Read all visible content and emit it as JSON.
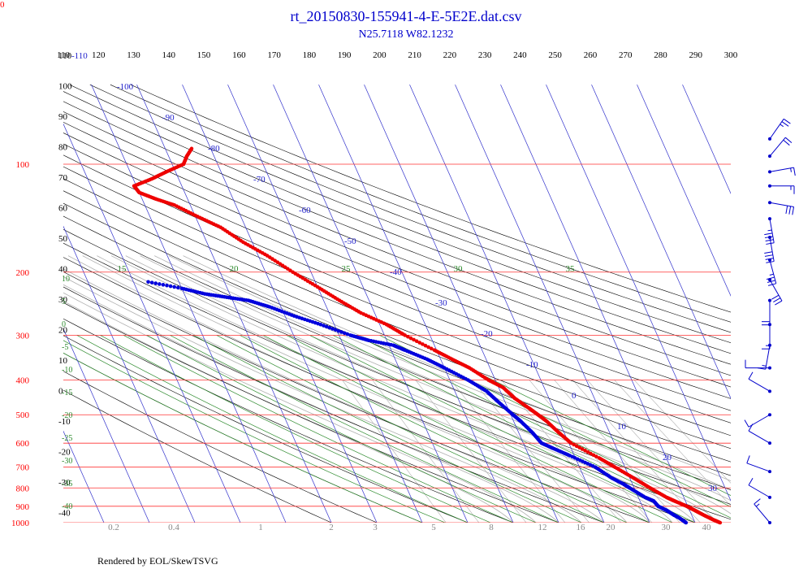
{
  "page": {
    "corner_label": "0",
    "title": "rt_20150830-155941-4-E-5E2E.dat.csv",
    "subtitle": "N25.7118 W82.1232",
    "credit": "Rendered by EOL/SkewTSVG"
  },
  "colors": {
    "isobar": "#ff3333",
    "isobar_label": "#ff0000",
    "isotherm": "#3333cc",
    "isotherm_label": "#2222cc",
    "dry_adiabat": "#000000",
    "moist_adiabat": "#b0b0b0",
    "mixing_ratio": "#2e8b2e",
    "temperature_trace": "#ee0000",
    "dewpoint_trace": "#0000dd",
    "wind_barb": "#0000cc"
  },
  "chart_data": {
    "type": "scatter",
    "chart_kind": "skew-t log-p diagram",
    "p_range_hPa": [
      100,
      1000
    ],
    "top_label_range": [
      110,
      300
    ],
    "pressure_labels": [
      "100",
      "200",
      "300",
      "400",
      "500",
      "600",
      "700",
      "800",
      "900",
      "1000"
    ],
    "pressure_levels": [
      100,
      200,
      300,
      400,
      500,
      600,
      700,
      800,
      900,
      1000
    ],
    "top_scale_labels": [
      "110",
      "120",
      "130",
      "140",
      "150",
      "160",
      "170",
      "180",
      "190",
      "200",
      "210",
      "220",
      "230",
      "240",
      "250",
      "260",
      "270",
      "280",
      "290",
      "300"
    ],
    "left_theta_labels": [
      "110",
      "100",
      "90",
      "80",
      "70",
      "60",
      "50",
      "40",
      "30",
      "20",
      "10",
      "0",
      "-10",
      "-20",
      "-30",
      "-40"
    ],
    "left_mixing_labels": [
      "10",
      "5",
      "0",
      "-5",
      "-10",
      "-15",
      "-20",
      "-25",
      "-30",
      "-35",
      "-40"
    ],
    "isotherm_labels": [
      {
        "t": -110,
        "text": "-110"
      },
      {
        "t": -100,
        "text": "-100"
      },
      {
        "t": -90,
        "text": "-90"
      },
      {
        "t": -80,
        "text": "-80"
      },
      {
        "t": -70,
        "text": "-70"
      },
      {
        "t": -60,
        "text": "-60"
      },
      {
        "t": -50,
        "text": "-50"
      },
      {
        "t": -40,
        "text": "-40"
      },
      {
        "t": -30,
        "text": "-30"
      },
      {
        "t": -20,
        "text": "-20"
      },
      {
        "t": -10,
        "text": "-10"
      },
      {
        "t": 0,
        "text": "0"
      },
      {
        "t": 10,
        "text": "10"
      },
      {
        "t": 20,
        "text": "20"
      },
      {
        "t": 30,
        "text": "30"
      }
    ],
    "moist_labels": [
      "15",
      "20",
      "25",
      "30",
      "35"
    ],
    "bottom_mixing_labels": [
      "0.2",
      "0.4",
      "1",
      "2",
      "3",
      "5",
      "8",
      "12",
      "16",
      "20",
      "30",
      "40"
    ],
    "temperature": [
      {
        "p": 1000,
        "t": 25.5
      },
      {
        "p": 980,
        "t": 24.2
      },
      {
        "p": 950,
        "t": 22.5
      },
      {
        "p": 925,
        "t": 21.2
      },
      {
        "p": 900,
        "t": 19.8
      },
      {
        "p": 870,
        "t": 17.6
      },
      {
        "p": 850,
        "t": 16.2
      },
      {
        "p": 800,
        "t": 13.5
      },
      {
        "p": 750,
        "t": 10.8
      },
      {
        "p": 700,
        "t": 7.8
      },
      {
        "p": 660,
        "t": 5.2
      },
      {
        "p": 600,
        "t": 0.5
      },
      {
        "p": 560,
        "t": -1.2
      },
      {
        "p": 520,
        "t": -2.8
      },
      {
        "p": 500,
        "t": -4.0
      },
      {
        "p": 480,
        "t": -5.3
      },
      {
        "p": 450,
        "t": -7.5
      },
      {
        "p": 420,
        "t": -9.0
      },
      {
        "p": 400,
        "t": -11.5
      },
      {
        "p": 370,
        "t": -14.5
      },
      {
        "p": 350,
        "t": -17.5
      },
      {
        "p": 330,
        "t": -20.5
      },
      {
        "p": 300,
        "t": -25.5
      },
      {
        "p": 280,
        "t": -28.5
      },
      {
        "p": 260,
        "t": -33.0
      },
      {
        "p": 240,
        "t": -36.5
      },
      {
        "p": 220,
        "t": -40.0
      },
      {
        "p": 200,
        "t": -44.0
      },
      {
        "p": 180,
        "t": -48.0
      },
      {
        "p": 165,
        "t": -52.0
      },
      {
        "p": 150,
        "t": -55.5
      },
      {
        "p": 140,
        "t": -59.5
      },
      {
        "p": 130,
        "t": -63.5
      },
      {
        "p": 125,
        "t": -67.0
      },
      {
        "p": 120,
        "t": -70.0
      },
      {
        "p": 115,
        "t": -70.5
      },
      {
        "p": 110,
        "t": -66.0
      },
      {
        "p": 105,
        "t": -62.0
      },
      {
        "p": 100,
        "t": -57.5
      },
      {
        "p": 95,
        "t": -56.0
      },
      {
        "p": 90,
        "t": -54.0
      }
    ],
    "dewpoint": [
      {
        "p": 1000,
        "t": 18.0
      },
      {
        "p": 970,
        "t": 17.0
      },
      {
        "p": 950,
        "t": 16.0
      },
      {
        "p": 925,
        "t": 15.0
      },
      {
        "p": 900,
        "t": 13.5
      },
      {
        "p": 870,
        "t": 13.0
      },
      {
        "p": 850,
        "t": 11.5
      },
      {
        "p": 800,
        "t": 9.0
      },
      {
        "p": 780,
        "t": 8.0
      },
      {
        "p": 750,
        "t": 6.0
      },
      {
        "p": 700,
        "t": 3.5
      },
      {
        "p": 650,
        "t": -1.0
      },
      {
        "p": 620,
        "t": -4.0
      },
      {
        "p": 600,
        "t": -6.0
      },
      {
        "p": 560,
        "t": -7.0
      },
      {
        "p": 520,
        "t": -8.5
      },
      {
        "p": 500,
        "t": -9.5
      },
      {
        "p": 460,
        "t": -11.5
      },
      {
        "p": 430,
        "t": -13.0
      },
      {
        "p": 400,
        "t": -16.0
      },
      {
        "p": 370,
        "t": -20.0
      },
      {
        "p": 350,
        "t": -23.0
      },
      {
        "p": 330,
        "t": -27.0
      },
      {
        "p": 320,
        "t": -29.0
      },
      {
        "p": 310,
        "t": -34.0
      },
      {
        "p": 300,
        "t": -37.5
      },
      {
        "p": 280,
        "t": -43.0
      },
      {
        "p": 265,
        "t": -48.0
      },
      {
        "p": 250,
        "t": -52.5
      },
      {
        "p": 240,
        "t": -56.5
      },
      {
        "p": 235,
        "t": -61.0
      },
      {
        "p": 230,
        "t": -65.5
      },
      {
        "p": 222,
        "t": -70.0
      },
      {
        "p": 212,
        "t": -77.5
      }
    ],
    "wind_barbs": [
      {
        "p": 85,
        "dir": 35,
        "spd": 25
      },
      {
        "p": 95,
        "dir": 40,
        "spd": 20
      },
      {
        "p": 105,
        "dir": 80,
        "spd": 15
      },
      {
        "p": 115,
        "dir": 90,
        "spd": 15
      },
      {
        "p": 128,
        "dir": 100,
        "spd": 30
      },
      {
        "p": 142,
        "dir": 170,
        "spd": 45
      },
      {
        "p": 160,
        "dir": 170,
        "spd": 40
      },
      {
        "p": 185,
        "dir": 165,
        "spd": 35
      },
      {
        "p": 210,
        "dir": 150,
        "spd": 30
      },
      {
        "p": 240,
        "dir": 180,
        "spd": 20
      },
      {
        "p": 280,
        "dir": 180,
        "spd": 15
      },
      {
        "p": 320,
        "dir": 190,
        "spd": 15
      },
      {
        "p": 370,
        "dir": 270,
        "spd": 10
      },
      {
        "p": 430,
        "dir": 300,
        "spd": 10
      },
      {
        "p": 500,
        "dir": 240,
        "spd": 10
      },
      {
        "p": 600,
        "dir": 300,
        "spd": 10
      },
      {
        "p": 720,
        "dir": 290,
        "spd": 10
      },
      {
        "p": 850,
        "dir": 300,
        "spd": 10
      },
      {
        "p": 1000,
        "dir": 320,
        "spd": 15
      }
    ]
  }
}
